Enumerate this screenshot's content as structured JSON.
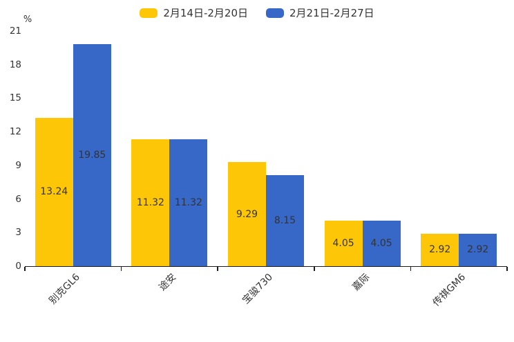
{
  "chart_data": {
    "type": "bar",
    "title": "",
    "xlabel": "",
    "ylabel": "%",
    "ylim": [
      0,
      21
    ],
    "yticks": [
      0,
      3,
      6,
      9,
      12,
      15,
      18,
      21
    ],
    "grid": false,
    "legend_position": "top",
    "value_labels": "inside-center",
    "text_color": "#333333",
    "axis_color": "#1a1a1a",
    "categories": [
      "别克GL6",
      "途安",
      "宝骏730",
      "嘉际",
      "传祺GM6"
    ],
    "series": [
      {
        "name": "2月14日-2月20日",
        "color": "#FDC707",
        "values": [
          13.24,
          11.32,
          9.29,
          4.05,
          2.92
        ]
      },
      {
        "name": "2月21日-2月27日",
        "color": "#3767C7",
        "values": [
          19.85,
          11.32,
          8.15,
          4.05,
          2.92
        ]
      }
    ]
  }
}
